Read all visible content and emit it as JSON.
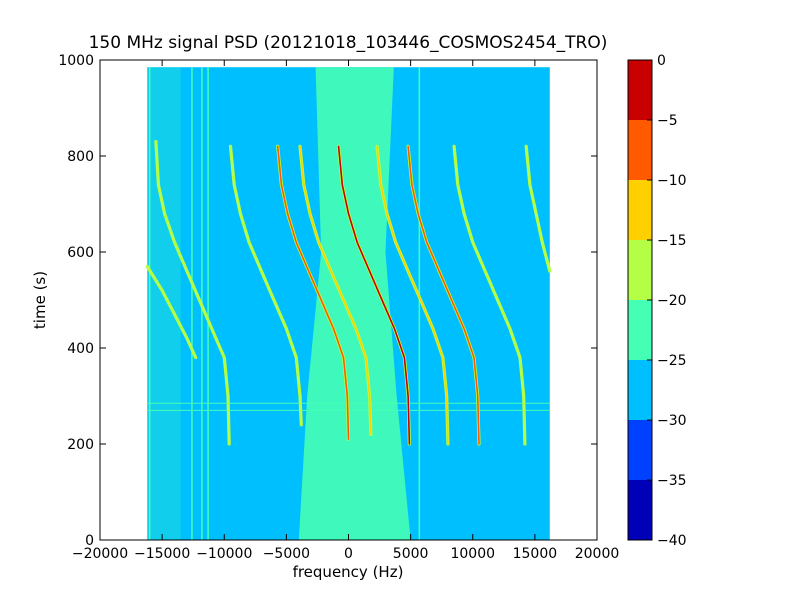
{
  "chart_data": {
    "type": "heatmap",
    "title": "150 MHz signal PSD (20121018_103446_COSMOS2454_TRO)",
    "xlabel": "frequency (Hz)",
    "ylabel": "time (s)",
    "xlim": [
      -20000,
      20000
    ],
    "ylim": [
      0,
      1000
    ],
    "x_ticks": [
      -20000,
      -15000,
      -10000,
      -5000,
      0,
      5000,
      10000,
      15000,
      20000
    ],
    "x_tick_labels": [
      "−20000",
      "−15000",
      "−10000",
      "−5000",
      "0",
      "5000",
      "10000",
      "15000",
      "20000"
    ],
    "y_ticks": [
      0,
      200,
      400,
      600,
      800,
      1000
    ],
    "y_tick_labels": [
      "0",
      "200",
      "400",
      "600",
      "800",
      "1000"
    ],
    "data_extent": {
      "x": [
        -16200,
        16200
      ],
      "y": [
        0,
        985
      ]
    },
    "grid": false,
    "colorbar": {
      "range": [
        -40,
        0
      ],
      "levels": [
        -40,
        -35,
        -30,
        -25,
        -20,
        -15,
        -10,
        -5,
        0
      ],
      "tick_labels": [
        "0",
        "−5",
        "−10",
        "−15",
        "−20",
        "−25",
        "−30",
        "−35",
        "−40"
      ],
      "colors": [
        "#0000b8",
        "#0040ff",
        "#00bfff",
        "#45ffb4",
        "#b4ff45",
        "#ffd000",
        "#ff5a00",
        "#c80000"
      ]
    },
    "background_level_db": -27.5,
    "central_band": {
      "x_center": 500,
      "halfwidth_hz": 4500,
      "level_db": -22.5
    },
    "vertical_lines": [
      {
        "x": -16000,
        "level_db": -22.5
      },
      {
        "x": -12600,
        "level_db": -22.5
      },
      {
        "x": -11800,
        "level_db": -22.5
      },
      {
        "x": -11300,
        "level_db": -22.5
      },
      {
        "x": 5700,
        "level_db": -22.5
      }
    ],
    "horizontal_lines": [
      {
        "y": 270,
        "level_db": -22.5
      },
      {
        "y": 285,
        "level_db": -22.5
      }
    ],
    "traces": [
      {
        "name": "",
        "points": [
          [
            -15500,
            830
          ],
          [
            -15300,
            740
          ],
          [
            -14800,
            680
          ],
          [
            -14000,
            620
          ],
          [
            -13000,
            560
          ],
          [
            -12000,
            500
          ],
          [
            -11000,
            440
          ],
          [
            -10000,
            380
          ],
          [
            -9700,
            300
          ],
          [
            -9600,
            200
          ]
        ],
        "level_db": -17.5
      },
      {
        "name": "",
        "points": [
          [
            -16200,
            570
          ],
          [
            -15000,
            520
          ],
          [
            -14000,
            470
          ],
          [
            -13000,
            420
          ],
          [
            -12300,
            380
          ]
        ],
        "level_db": -17.5
      },
      {
        "name": "",
        "points": [
          [
            -9500,
            820
          ],
          [
            -9200,
            740
          ],
          [
            -8700,
            680
          ],
          [
            -8000,
            620
          ],
          [
            -7000,
            560
          ],
          [
            -6000,
            500
          ],
          [
            -5000,
            440
          ],
          [
            -4200,
            380
          ],
          [
            -3900,
            300
          ],
          [
            -3800,
            240
          ]
        ],
        "level_db": -17.5
      },
      {
        "name": "",
        "points": [
          [
            -5700,
            820
          ],
          [
            -5400,
            740
          ],
          [
            -4900,
            680
          ],
          [
            -4200,
            620
          ],
          [
            -3200,
            560
          ],
          [
            -2200,
            500
          ],
          [
            -1200,
            440
          ],
          [
            -400,
            380
          ],
          [
            -100,
            300
          ],
          [
            0,
            210
          ]
        ],
        "level_db": -7.5
      },
      {
        "name": "",
        "points": [
          [
            -3900,
            820
          ],
          [
            -3600,
            740
          ],
          [
            -3100,
            680
          ],
          [
            -2400,
            620
          ],
          [
            -1400,
            560
          ],
          [
            -400,
            500
          ],
          [
            600,
            440
          ],
          [
            1400,
            380
          ],
          [
            1700,
            300
          ],
          [
            1800,
            220
          ]
        ],
        "level_db": -12.5
      },
      {
        "name": "",
        "points": [
          [
            -800,
            820
          ],
          [
            -500,
            740
          ],
          [
            0,
            680
          ],
          [
            700,
            620
          ],
          [
            1700,
            560
          ],
          [
            2700,
            500
          ],
          [
            3700,
            440
          ],
          [
            4500,
            380
          ],
          [
            4800,
            300
          ],
          [
            4900,
            200
          ]
        ],
        "level_db": -2.5
      },
      {
        "name": "",
        "points": [
          [
            2300,
            820
          ],
          [
            2600,
            740
          ],
          [
            3100,
            680
          ],
          [
            3800,
            620
          ],
          [
            4800,
            560
          ],
          [
            5800,
            500
          ],
          [
            6800,
            440
          ],
          [
            7600,
            380
          ],
          [
            7900,
            300
          ],
          [
            8000,
            200
          ]
        ],
        "level_db": -12.5
      },
      {
        "name": "",
        "points": [
          [
            4800,
            820
          ],
          [
            5100,
            740
          ],
          [
            5600,
            680
          ],
          [
            6300,
            620
          ],
          [
            7300,
            560
          ],
          [
            8300,
            500
          ],
          [
            9300,
            440
          ],
          [
            10100,
            380
          ],
          [
            10400,
            300
          ],
          [
            10500,
            200
          ]
        ],
        "level_db": -7.5
      },
      {
        "name": "",
        "points": [
          [
            8500,
            820
          ],
          [
            8800,
            740
          ],
          [
            9300,
            680
          ],
          [
            10000,
            620
          ],
          [
            11000,
            560
          ],
          [
            12000,
            500
          ],
          [
            13000,
            440
          ],
          [
            13800,
            380
          ],
          [
            14100,
            300
          ],
          [
            14200,
            200
          ]
        ],
        "level_db": -17.5
      },
      {
        "name": "",
        "points": [
          [
            14300,
            820
          ],
          [
            14600,
            740
          ],
          [
            15100,
            680
          ],
          [
            15600,
            620
          ],
          [
            16200,
            560
          ]
        ],
        "level_db": -17.5
      }
    ]
  }
}
